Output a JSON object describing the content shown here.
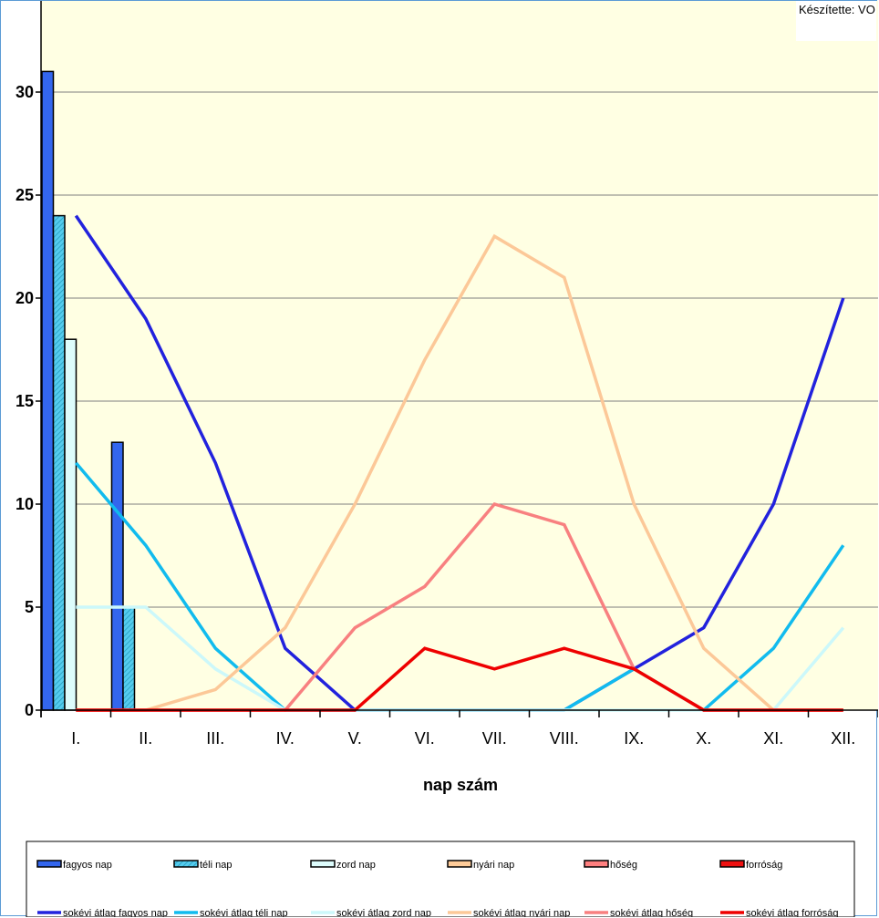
{
  "credit": "Készítette: VO",
  "chart_data": {
    "type": "bar",
    "xlabel": "nap szám",
    "ylabel": "",
    "ylim": [
      0,
      34
    ],
    "yticks": [
      0,
      5,
      10,
      15,
      20,
      25,
      30
    ],
    "grid": true,
    "legend_position": "bottom",
    "categories": [
      "I.",
      "II.",
      "III.",
      "IV.",
      "V.",
      "VI.",
      "VII.",
      "VIII.",
      "IX.",
      "X.",
      "XI.",
      "XII."
    ],
    "bar_series": [
      {
        "name": "fagyos nap",
        "color": "#3366ee",
        "pattern": "none",
        "values": [
          31,
          13,
          0,
          0,
          0,
          0,
          0,
          0,
          0,
          0,
          0,
          0
        ]
      },
      {
        "name": "téli nap",
        "color": "#55ccee",
        "pattern": "hatch",
        "values": [
          24,
          5,
          0,
          0,
          0,
          0,
          0,
          0,
          0,
          0,
          0,
          0
        ]
      },
      {
        "name": "zord nap",
        "color": "#ddfcfc",
        "pattern": "none",
        "values": [
          18,
          0,
          0,
          0,
          0,
          0,
          0,
          0,
          0,
          0,
          0,
          0
        ]
      },
      {
        "name": "nyári nap",
        "color": "#ffcc99",
        "pattern": "none",
        "values": [
          0,
          0,
          0,
          0,
          0,
          0,
          0,
          0,
          0,
          0,
          0,
          0
        ]
      },
      {
        "name": "hőség",
        "color": "#ff8080",
        "pattern": "none",
        "values": [
          0,
          0,
          0,
          0,
          0,
          0,
          0,
          0,
          0,
          0,
          0,
          0
        ]
      },
      {
        "name": "forróság",
        "color": "#ee1111",
        "pattern": "none",
        "values": [
          0,
          0,
          0,
          0,
          0,
          0,
          0,
          0,
          0,
          0,
          0,
          0
        ]
      }
    ],
    "line_series": [
      {
        "name": "sokévi átlag fagyos nap",
        "color": "#2222dd",
        "values": [
          24,
          19,
          12,
          3,
          0,
          0,
          0,
          0,
          2,
          4,
          10,
          20
        ]
      },
      {
        "name": "sokévi átlag téli nap",
        "color": "#11bbee",
        "values": [
          12,
          8,
          3,
          0,
          0,
          0,
          0,
          0,
          2,
          0,
          3,
          8
        ]
      },
      {
        "name": "sokévi átlag zord nap",
        "color": "#ccf8fa",
        "values": [
          5,
          5,
          2,
          0,
          0,
          0,
          0,
          0,
          0,
          0,
          0,
          4
        ]
      },
      {
        "name": "sokévi átlag nyári nap",
        "color": "#fcc898",
        "values": [
          0,
          0,
          1,
          4,
          10,
          17,
          23,
          21,
          10,
          3,
          0,
          0
        ]
      },
      {
        "name": "sokévi átlag hőség",
        "color": "#f88080",
        "values": [
          0,
          0,
          0,
          0,
          4,
          6,
          10,
          9,
          2,
          0,
          0,
          0
        ]
      },
      {
        "name": "sokévi átlag forróság",
        "color": "#ee0000",
        "values": [
          0,
          0,
          0,
          0,
          0,
          3,
          2,
          3,
          2,
          0,
          0,
          0
        ]
      }
    ]
  }
}
